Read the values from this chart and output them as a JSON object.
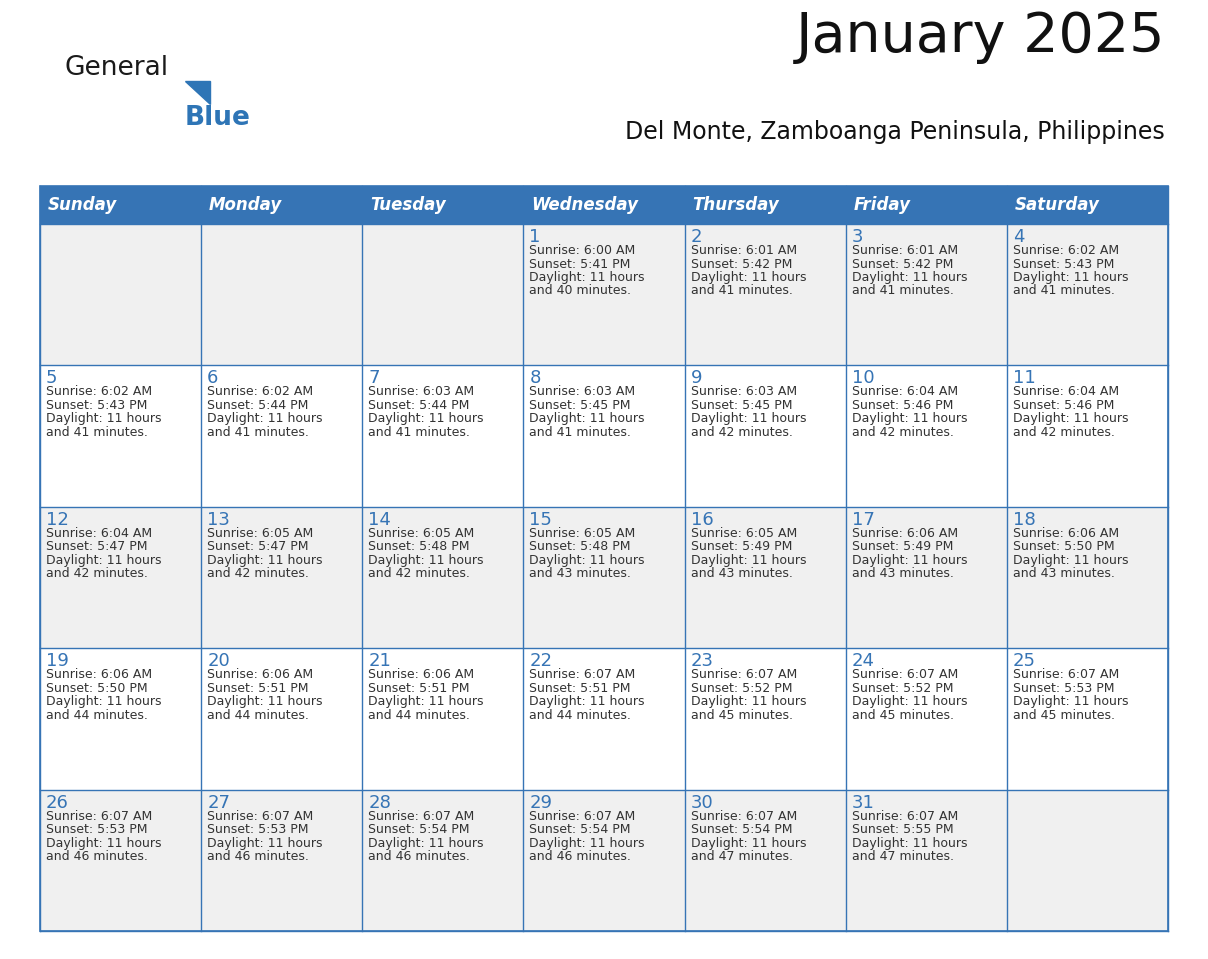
{
  "title": "January 2025",
  "subtitle": "Del Monte, Zamboanga Peninsula, Philippines",
  "days_of_week": [
    "Sunday",
    "Monday",
    "Tuesday",
    "Wednesday",
    "Thursday",
    "Friday",
    "Saturday"
  ],
  "header_bg": "#3674B5",
  "header_text": "#FFFFFF",
  "cell_bg_white": "#FFFFFF",
  "cell_bg_gray": "#F0F0F0",
  "border_color": "#3674B5",
  "day_number_color": "#3674B5",
  "text_color": "#333333",
  "logo_general_color": "#1a1a1a",
  "logo_blue_color": "#2E75B6",
  "calendar_data": [
    [
      {
        "day": "",
        "sunrise": "",
        "sunset": "",
        "daylight": ""
      },
      {
        "day": "",
        "sunrise": "",
        "sunset": "",
        "daylight": ""
      },
      {
        "day": "",
        "sunrise": "",
        "sunset": "",
        "daylight": ""
      },
      {
        "day": "1",
        "sunrise": "6:00 AM",
        "sunset": "5:41 PM",
        "daylight": "40 minutes."
      },
      {
        "day": "2",
        "sunrise": "6:01 AM",
        "sunset": "5:42 PM",
        "daylight": "41 minutes."
      },
      {
        "day": "3",
        "sunrise": "6:01 AM",
        "sunset": "5:42 PM",
        "daylight": "41 minutes."
      },
      {
        "day": "4",
        "sunrise": "6:02 AM",
        "sunset": "5:43 PM",
        "daylight": "41 minutes."
      }
    ],
    [
      {
        "day": "5",
        "sunrise": "6:02 AM",
        "sunset": "5:43 PM",
        "daylight": "41 minutes."
      },
      {
        "day": "6",
        "sunrise": "6:02 AM",
        "sunset": "5:44 PM",
        "daylight": "41 minutes."
      },
      {
        "day": "7",
        "sunrise": "6:03 AM",
        "sunset": "5:44 PM",
        "daylight": "41 minutes."
      },
      {
        "day": "8",
        "sunrise": "6:03 AM",
        "sunset": "5:45 PM",
        "daylight": "41 minutes."
      },
      {
        "day": "9",
        "sunrise": "6:03 AM",
        "sunset": "5:45 PM",
        "daylight": "42 minutes."
      },
      {
        "day": "10",
        "sunrise": "6:04 AM",
        "sunset": "5:46 PM",
        "daylight": "42 minutes."
      },
      {
        "day": "11",
        "sunrise": "6:04 AM",
        "sunset": "5:46 PM",
        "daylight": "42 minutes."
      }
    ],
    [
      {
        "day": "12",
        "sunrise": "6:04 AM",
        "sunset": "5:47 PM",
        "daylight": "42 minutes."
      },
      {
        "day": "13",
        "sunrise": "6:05 AM",
        "sunset": "5:47 PM",
        "daylight": "42 minutes."
      },
      {
        "day": "14",
        "sunrise": "6:05 AM",
        "sunset": "5:48 PM",
        "daylight": "42 minutes."
      },
      {
        "day": "15",
        "sunrise": "6:05 AM",
        "sunset": "5:48 PM",
        "daylight": "43 minutes."
      },
      {
        "day": "16",
        "sunrise": "6:05 AM",
        "sunset": "5:49 PM",
        "daylight": "43 minutes."
      },
      {
        "day": "17",
        "sunrise": "6:06 AM",
        "sunset": "5:49 PM",
        "daylight": "43 minutes."
      },
      {
        "day": "18",
        "sunrise": "6:06 AM",
        "sunset": "5:50 PM",
        "daylight": "43 minutes."
      }
    ],
    [
      {
        "day": "19",
        "sunrise": "6:06 AM",
        "sunset": "5:50 PM",
        "daylight": "44 minutes."
      },
      {
        "day": "20",
        "sunrise": "6:06 AM",
        "sunset": "5:51 PM",
        "daylight": "44 minutes."
      },
      {
        "day": "21",
        "sunrise": "6:06 AM",
        "sunset": "5:51 PM",
        "daylight": "44 minutes."
      },
      {
        "day": "22",
        "sunrise": "6:07 AM",
        "sunset": "5:51 PM",
        "daylight": "44 minutes."
      },
      {
        "day": "23",
        "sunrise": "6:07 AM",
        "sunset": "5:52 PM",
        "daylight": "45 minutes."
      },
      {
        "day": "24",
        "sunrise": "6:07 AM",
        "sunset": "5:52 PM",
        "daylight": "45 minutes."
      },
      {
        "day": "25",
        "sunrise": "6:07 AM",
        "sunset": "5:53 PM",
        "daylight": "45 minutes."
      }
    ],
    [
      {
        "day": "26",
        "sunrise": "6:07 AM",
        "sunset": "5:53 PM",
        "daylight": "46 minutes."
      },
      {
        "day": "27",
        "sunrise": "6:07 AM",
        "sunset": "5:53 PM",
        "daylight": "46 minutes."
      },
      {
        "day": "28",
        "sunrise": "6:07 AM",
        "sunset": "5:54 PM",
        "daylight": "46 minutes."
      },
      {
        "day": "29",
        "sunrise": "6:07 AM",
        "sunset": "5:54 PM",
        "daylight": "46 minutes."
      },
      {
        "day": "30",
        "sunrise": "6:07 AM",
        "sunset": "5:54 PM",
        "daylight": "47 minutes."
      },
      {
        "day": "31",
        "sunrise": "6:07 AM",
        "sunset": "5:55 PM",
        "daylight": "47 minutes."
      },
      {
        "day": "",
        "sunrise": "",
        "sunset": "",
        "daylight": ""
      }
    ]
  ]
}
